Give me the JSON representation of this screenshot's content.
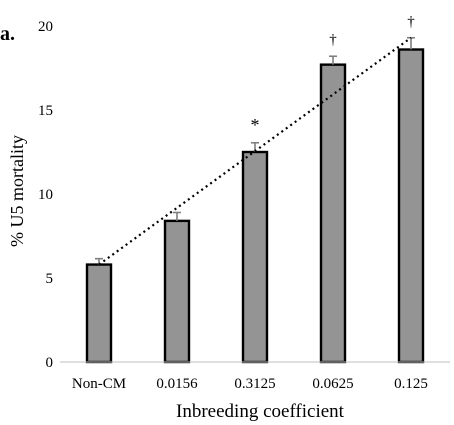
{
  "panel_label": "a.",
  "chart_data": {
    "type": "bar",
    "categories": [
      "Non-CM",
      "0.0156",
      "0.3125",
      "0.0625",
      "0.125"
    ],
    "values": [
      5.8,
      8.4,
      12.5,
      17.7,
      18.6
    ],
    "errors": [
      0.35,
      0.5,
      0.55,
      0.5,
      0.7
    ],
    "annotations": [
      "",
      "",
      "*",
      "†",
      "†"
    ],
    "xlabel": "Inbreeding coefficient",
    "ylabel": "% U5 mortality",
    "ylim": [
      0,
      20
    ],
    "yticks": [
      0,
      5,
      10,
      15,
      20
    ],
    "bar_color": "#949494",
    "bar_edge_color": "#000000",
    "trendline": {
      "style": "dotted",
      "from_value": 5.8,
      "to_value": 19.3
    },
    "grid": false
  }
}
